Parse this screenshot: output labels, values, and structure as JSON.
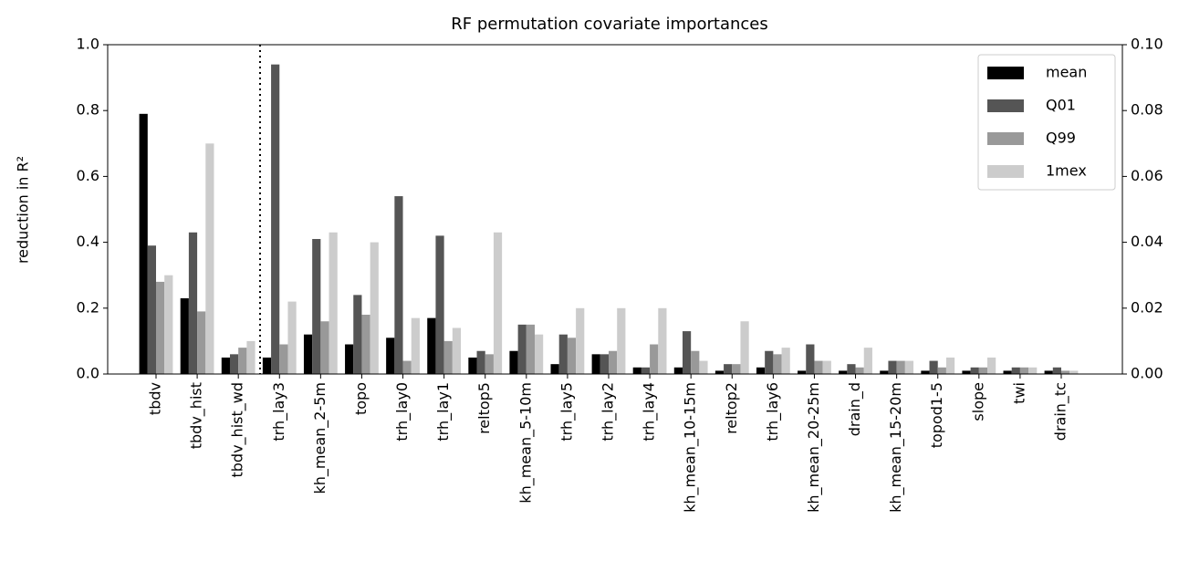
{
  "chart_data": {
    "type": "bar",
    "title": "RF permutation covariate importances",
    "y_label": "reduction in R²",
    "categories": [
      "tbdv",
      "tbdv_hist",
      "tbdv_hist_wd",
      "trh_lay3",
      "kh_mean_2-5m",
      "topo",
      "trh_lay0",
      "trh_lay1",
      "reltop5",
      "kh_mean_5-10m",
      "trh_lay5",
      "trh_lay2",
      "trh_lay4",
      "kh_mean_10-15m",
      "reltop2",
      "trh_lay6",
      "kh_mean_20-25m",
      "drain_d",
      "kh_mean_15-20m",
      "topod1-5",
      "slope",
      "twi",
      "drain_tc"
    ],
    "series": [
      {
        "name": "mean",
        "color": "#000000",
        "values": [
          0.79,
          0.23,
          0.05,
          0.05,
          0.12,
          0.09,
          0.11,
          0.17,
          0.05,
          0.07,
          0.03,
          0.06,
          0.02,
          0.02,
          0.01,
          0.02,
          0.01,
          0.01,
          0.01,
          0.01,
          0.01,
          0.01,
          0.01
        ]
      },
      {
        "name": "Q01",
        "color": "#555555",
        "values": [
          0.39,
          0.43,
          0.06,
          0.94,
          0.41,
          0.24,
          0.54,
          0.42,
          0.07,
          0.15,
          0.12,
          0.06,
          0.02,
          0.13,
          0.03,
          0.07,
          0.09,
          0.03,
          0.04,
          0.04,
          0.02,
          0.02,
          0.02
        ]
      },
      {
        "name": "Q99",
        "color": "#999999",
        "values": [
          0.28,
          0.19,
          0.08,
          0.09,
          0.16,
          0.18,
          0.04,
          0.1,
          0.06,
          0.15,
          0.11,
          0.07,
          0.09,
          0.07,
          0.03,
          0.06,
          0.04,
          0.02,
          0.04,
          0.02,
          0.02,
          0.02,
          0.01
        ]
      },
      {
        "name": "1mex",
        "color": "#cccccc",
        "values": [
          0.3,
          0.7,
          0.1,
          0.22,
          0.43,
          0.4,
          0.17,
          0.14,
          0.43,
          0.12,
          0.2,
          0.2,
          0.2,
          0.04,
          0.16,
          0.08,
          0.04,
          0.08,
          0.04,
          0.05,
          0.05,
          0.02,
          0.01
        ]
      }
    ],
    "ylim": [
      0,
      1.0
    ],
    "yticks": [
      {
        "value": 0,
        "label": "0.0"
      },
      0.2,
      0.4,
      0.6,
      0.8,
      {
        "value": 1.0,
        "label": "1.0"
      }
    ],
    "y2lim": [
      0,
      0.1
    ],
    "y2ticks": [
      {
        "value": 0,
        "label": "0.00"
      },
      {
        "value": 0.02,
        "label": "0.02"
      },
      {
        "value": 0.04,
        "label": "0.04"
      },
      {
        "value": 0.06,
        "label": "0.06"
      },
      {
        "value": 0.08,
        "label": "0.08"
      },
      {
        "value": 0.1,
        "label": "0.10"
      }
    ],
    "legend": "upper right"
  }
}
